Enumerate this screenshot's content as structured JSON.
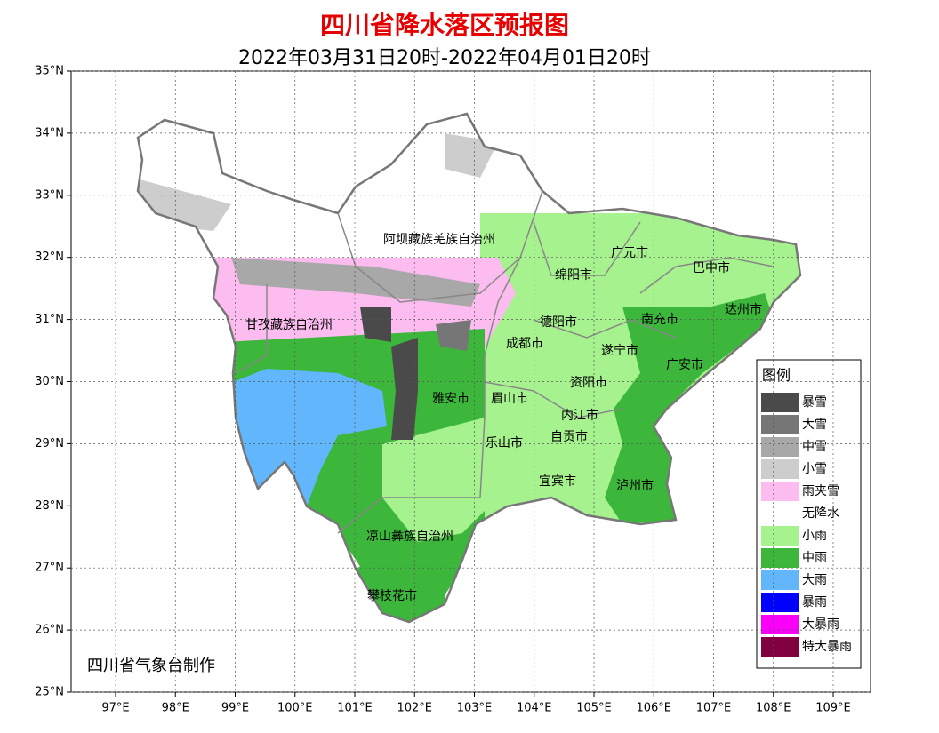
{
  "header": {
    "title": "四川省降水落区预报图",
    "subtitle": "2022年03月31日20时-2022年04月01日20时"
  },
  "map": {
    "lat_ticks": [
      {
        "value": 35,
        "label": "35°N"
      },
      {
        "value": 34,
        "label": "34°N"
      },
      {
        "value": 33,
        "label": "33°N"
      },
      {
        "value": 32,
        "label": "32°N"
      },
      {
        "value": 31,
        "label": "31°N"
      },
      {
        "value": 30,
        "label": "30°N"
      },
      {
        "value": 29,
        "label": "29°N"
      },
      {
        "value": 28,
        "label": "28°N"
      },
      {
        "value": 27,
        "label": "27°N"
      },
      {
        "value": 26,
        "label": "26°N"
      },
      {
        "value": 25,
        "label": "25°N"
      }
    ],
    "lon_ticks": [
      {
        "value": 97,
        "label": "97°E"
      },
      {
        "value": 98,
        "label": "98°E"
      },
      {
        "value": 99,
        "label": "99°E"
      },
      {
        "value": 100,
        "label": "100°E"
      },
      {
        "value": 101,
        "label": "101°E"
      },
      {
        "value": 102,
        "label": "102°E"
      },
      {
        "value": 103,
        "label": "103°E"
      },
      {
        "value": 104,
        "label": "104°E"
      },
      {
        "value": 105,
        "label": "105°E"
      },
      {
        "value": 106,
        "label": "106°E"
      },
      {
        "value": 107,
        "label": "107°E"
      },
      {
        "value": 108,
        "label": "108°E"
      },
      {
        "value": 109,
        "label": "109°E"
      }
    ],
    "cities": [
      "阿坝藏族羌族自治州",
      "广元市",
      "巴中市",
      "绵阳市",
      "达州市",
      "甘孜藏族自治州",
      "德阳市",
      "南充市",
      "成都市",
      "遂宁市",
      "广安市",
      "资阳市",
      "雅安市",
      "眉山市",
      "内江市",
      "乐山市",
      "自贡市",
      "宜宾市",
      "泸州市",
      "凉山彝族自治州",
      "攀枝花市"
    ],
    "credit": "四川省气象台制作"
  },
  "legend": {
    "title": "图例",
    "items": [
      {
        "label": "暴雪",
        "color": "#4a4a4a"
      },
      {
        "label": "大雪",
        "color": "#767676"
      },
      {
        "label": "中雪",
        "color": "#a8a8a8"
      },
      {
        "label": "小雪",
        "color": "#cdcdcd"
      },
      {
        "label": "雨夹雪",
        "color": "#fdbcf0"
      },
      {
        "label": "无降水",
        "color": "#ffffff"
      },
      {
        "label": "小雨",
        "color": "#a6f28e"
      },
      {
        "label": "中雨",
        "color": "#3cb73c"
      },
      {
        "label": "大雨",
        "color": "#62b6fc"
      },
      {
        "label": "暴雨",
        "color": "#0000fe"
      },
      {
        "label": "大暴雨",
        "color": "#fa00fa"
      },
      {
        "label": "特大暴雨",
        "color": "#800040"
      }
    ]
  }
}
